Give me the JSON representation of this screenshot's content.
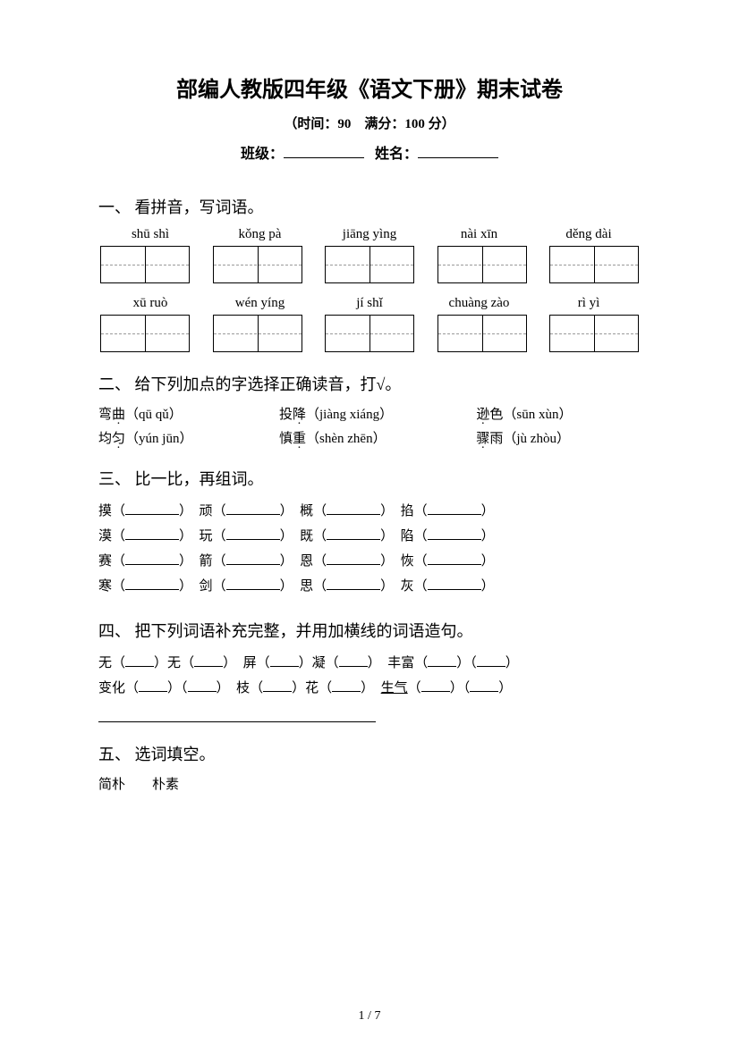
{
  "title": "部编人教版四年级《语文下册》期末试卷",
  "subtitle": "（时间：90　满分：100 分）",
  "info": {
    "class_label": "班级：",
    "name_label": "姓名："
  },
  "sections": {
    "s1": {
      "heading": "一、 看拼音，写词语。",
      "row1": [
        "shū shì",
        "kǒng pà",
        "jiāng yìng",
        "nài xīn",
        "děng dài"
      ],
      "row2": [
        "xū ruò",
        "wén yíng",
        "jí shǐ",
        "chuàng zào",
        "rì yì"
      ]
    },
    "s2": {
      "heading": "二、 给下列加点的字选择正确读音，打√。",
      "items": [
        {
          "pre": "弯",
          "dot": "曲",
          "reading": "（qū qǔ）"
        },
        {
          "pre": "投",
          "dot": "降",
          "reading": "（jiàng xiáng）"
        },
        {
          "pre": "",
          "dot": "逊",
          "post": "色",
          "reading": "（sūn xùn）"
        },
        {
          "pre": "均",
          "dot": "匀",
          "reading": "（yún jūn）"
        },
        {
          "pre": "慎",
          "dot": "重",
          "reading": "（shèn zhēn）"
        },
        {
          "pre": "",
          "dot": "骤",
          "post": "雨",
          "reading": "（jù zhòu）"
        }
      ]
    },
    "s3": {
      "heading": "三、 比一比，再组词。",
      "rows": [
        [
          "摸",
          "顽",
          "概",
          "掐"
        ],
        [
          "漠",
          "玩",
          "既",
          "陷"
        ],
        [
          "赛",
          "箭",
          "恩",
          "恢"
        ],
        [
          "寒",
          "剑",
          "思",
          "灰"
        ]
      ]
    },
    "s4": {
      "heading": "四、 把下列词语补充完整，并用加横线的词语造句。",
      "rows": [
        {
          "a": {
            "pre": "无",
            "mid": "无"
          },
          "b": {
            "pre": "屏",
            "mid": "凝"
          },
          "c": {
            "pre": "丰富"
          }
        },
        {
          "a": {
            "pre": "变化"
          },
          "b": {
            "pre": "枝",
            "mid": "花"
          },
          "c": {
            "pre": "生气",
            "underline": true
          }
        }
      ]
    },
    "s5": {
      "heading": "五、 选词填空。",
      "words": "简朴　　朴素"
    }
  },
  "page": {
    "current": "1",
    "sep": " / ",
    "total": "7"
  }
}
